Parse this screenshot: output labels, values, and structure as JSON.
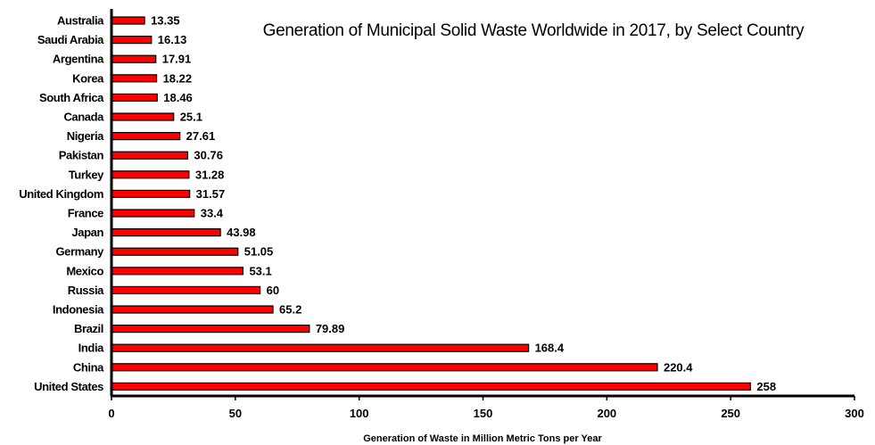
{
  "chart_data": {
    "type": "bar",
    "orientation": "horizontal",
    "title": "Generation of Municipal Solid Waste Worldwide in 2017, by Select Country",
    "xlabel": "Generation of Waste in Million  Metric Tons per Year",
    "ylabel": "",
    "xlim": [
      0,
      300
    ],
    "xticks": [
      0,
      50,
      100,
      150,
      200,
      250,
      300
    ],
    "grid": false,
    "legend": "none",
    "bar_color": "#ff0000",
    "bar_edge_color": "#000000",
    "categories": [
      "Australia",
      "Saudi Arabia",
      "Argentina",
      "Korea",
      "South Africa",
      "Canada",
      "Nigeria",
      "Pakistan",
      "Turkey",
      "United Kingdom",
      "France",
      "Japan",
      "Germany",
      "Mexico",
      "Russia",
      "Indonesia",
      "Brazil",
      "India",
      "China",
      "United States"
    ],
    "values": [
      13.35,
      16.13,
      17.91,
      18.22,
      18.46,
      25.1,
      27.61,
      30.76,
      31.28,
      31.57,
      33.4,
      43.98,
      51.05,
      53.1,
      60,
      65.2,
      79.89,
      168.4,
      220.4,
      258
    ],
    "value_labels": [
      "13.35",
      "16.13",
      "17.91",
      "18.22",
      "18.46",
      "25.1",
      "27.61",
      "30.76",
      "31.28",
      "31.57",
      "33.4",
      "43.98",
      "51.05",
      "53.1",
      "60",
      "65.2",
      "79.89",
      "168.4",
      "220.4",
      "258"
    ]
  }
}
